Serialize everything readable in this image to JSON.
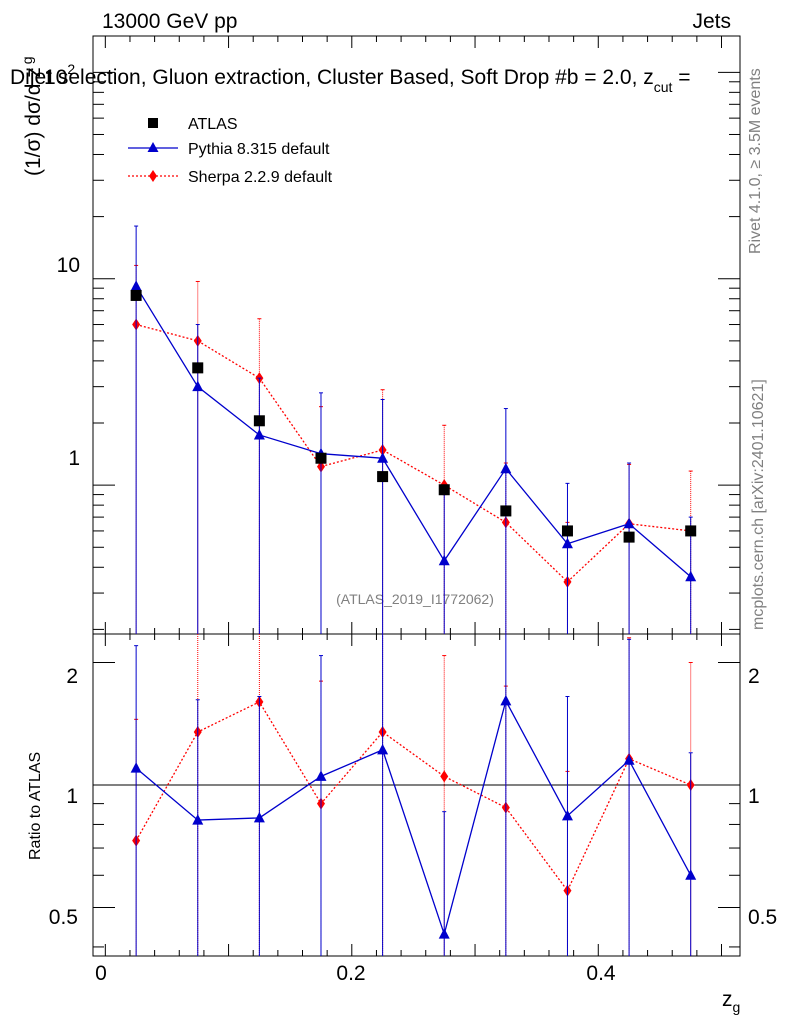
{
  "header": {
    "left": "13000 GeV pp",
    "right": "Jets",
    "subtitle": "Dijet selection, Gluon extraction, Cluster Based, Soft Drop #b = 2.0, z",
    "subtitle_cut": "cut",
    "subtitle_end": " ="
  },
  "side_labels": {
    "rivet": "Rivet 4.1.0, ≥ 3.5M events",
    "mcplots": "mcplots.cern.ch [arXiv:2401.10621]"
  },
  "analysis_id": "(ATLAS_2019_I1772062)",
  "axis": {
    "ylabel_main": "(1/σ) dσ/d z",
    "ylabel_main_sub": "g",
    "ylabel_ratio": "Ratio to ATLAS",
    "xlabel": "z",
    "xlabel_sub": "g",
    "y_tick_10": "10",
    "y_tick_1": "1",
    "y_tick_100_base": "10",
    "y_tick_100_exp": "2",
    "ratio_ticks": [
      "0.5",
      "1",
      "2"
    ],
    "x_ticks": [
      "0",
      "0.2",
      "0.4"
    ]
  },
  "legend": [
    {
      "label": "ATLAS",
      "key": "atlas"
    },
    {
      "label": "Pythia 8.315 default",
      "key": "pythia"
    },
    {
      "label": "Sherpa 2.2.9 default",
      "key": "sherpa"
    }
  ],
  "colors": {
    "atlas": "#000000",
    "pythia": "#0000cc",
    "sherpa": "#ff0000",
    "gray_text": "#808080"
  },
  "chart_data": {
    "type": "scatter",
    "title": "Dijet selection, Gluon extraction, Cluster Based, Soft Drop #b = 2.0, z_cut =",
    "xlabel": "z_g",
    "ylabel": "(1/σ) dσ/d z_g",
    "xlim": [
      -0.01,
      0.515
    ],
    "ylim_main": [
      0.19,
      150
    ],
    "ylog": true,
    "ylim_ratio": [
      0.38,
      2.35
    ],
    "ratio_log": true,
    "x": [
      0.025,
      0.075,
      0.125,
      0.175,
      0.225,
      0.275,
      0.325,
      0.375,
      0.425,
      0.475
    ],
    "series": [
      {
        "name": "ATLAS",
        "key": "atlas",
        "values": [
          8.3,
          3.7,
          2.05,
          1.35,
          1.1,
          0.95,
          0.75,
          0.6,
          0.56,
          0.6
        ]
      },
      {
        "name": "Pythia 8.315 default",
        "key": "pythia",
        "values": [
          9.2,
          3.0,
          1.75,
          1.42,
          1.35,
          0.43,
          1.2,
          0.52,
          0.65,
          0.36
        ],
        "err_up": [
          18.0,
          6.0,
          3.3,
          2.8,
          2.6,
          0.9,
          2.35,
          1.02,
          1.28,
          0.7
        ]
      },
      {
        "name": "Sherpa 2.2.9 default",
        "key": "sherpa",
        "values": [
          6.0,
          5.0,
          3.3,
          1.23,
          1.48,
          1.0,
          0.66,
          0.34,
          0.65,
          0.6
        ],
        "err_up": [
          11.6,
          9.7,
          6.4,
          2.4,
          2.9,
          1.95,
          1.28,
          0.66,
          1.26,
          1.17
        ]
      }
    ],
    "ratio_series": [
      {
        "name": "Pythia 8.315 default",
        "key": "pythia",
        "values": [
          1.1,
          0.82,
          0.83,
          1.05,
          1.22,
          0.43,
          1.61,
          0.84,
          1.15,
          0.6
        ],
        "err_up": [
          2.2,
          1.62,
          1.65,
          2.08,
          2.45,
          0.86,
          3.0,
          1.65,
          2.28,
          1.2
        ]
      },
      {
        "name": "Sherpa 2.2.9 default",
        "key": "sherpa",
        "values": [
          0.73,
          1.35,
          1.6,
          0.9,
          1.35,
          1.05,
          0.88,
          0.55,
          1.16,
          1.0
        ],
        "err_up": [
          1.45,
          2.7,
          3.2,
          1.8,
          2.7,
          2.08,
          1.75,
          1.08,
          2.3,
          2.0
        ]
      }
    ]
  }
}
